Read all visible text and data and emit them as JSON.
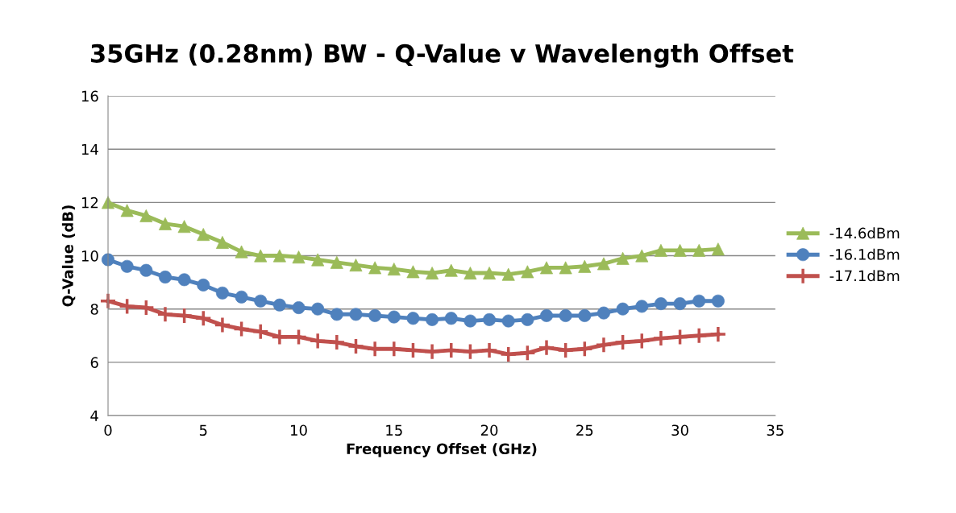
{
  "chart_data": {
    "type": "line",
    "title": "35GHz (0.28nm) BW - Q-Value v Wavelength Offset",
    "xlabel": "Frequency Offset (GHz)",
    "ylabel": "Q-Value (dB)",
    "x": [
      0,
      1,
      2,
      3,
      4,
      5,
      6,
      7,
      8,
      9,
      10,
      11,
      12,
      13,
      14,
      15,
      16,
      17,
      18,
      19,
      20,
      21,
      22,
      23,
      24,
      25,
      26,
      27,
      28,
      29,
      30,
      31,
      32
    ],
    "series": [
      {
        "name": "-14.6dBm",
        "color": "#9bbb59",
        "marker": "triangle",
        "values": [
          12.0,
          11.7,
          11.5,
          11.2,
          11.1,
          10.8,
          10.5,
          10.15,
          10.0,
          10.0,
          9.95,
          9.85,
          9.75,
          9.65,
          9.55,
          9.5,
          9.4,
          9.35,
          9.45,
          9.35,
          9.35,
          9.3,
          9.4,
          9.55,
          9.55,
          9.6,
          9.7,
          9.9,
          10.0,
          10.2,
          10.2,
          10.2,
          10.25
        ]
      },
      {
        "name": "-16.1dBm",
        "color": "#4f81bd",
        "marker": "circle",
        "values": [
          9.85,
          9.6,
          9.45,
          9.2,
          9.1,
          8.9,
          8.6,
          8.45,
          8.3,
          8.15,
          8.05,
          8.0,
          7.8,
          7.8,
          7.75,
          7.7,
          7.65,
          7.6,
          7.65,
          7.55,
          7.6,
          7.55,
          7.6,
          7.75,
          7.75,
          7.75,
          7.85,
          8.0,
          8.1,
          8.2,
          8.2,
          8.3,
          8.3
        ]
      },
      {
        "name": "-17.1dBm",
        "color": "#c0504d",
        "marker": "cross",
        "values": [
          8.3,
          8.1,
          8.05,
          7.8,
          7.75,
          7.65,
          7.4,
          7.25,
          7.15,
          6.95,
          6.95,
          6.8,
          6.75,
          6.6,
          6.5,
          6.5,
          6.45,
          6.4,
          6.45,
          6.4,
          6.45,
          6.3,
          6.35,
          6.55,
          6.45,
          6.5,
          6.65,
          6.75,
          6.8,
          6.9,
          6.95,
          7.0,
          7.05
        ]
      }
    ],
    "xlim": [
      0,
      35
    ],
    "xticks": [
      0,
      5,
      10,
      15,
      20,
      25,
      30,
      35
    ],
    "ylim": [
      4,
      16
    ],
    "yticks": [
      4,
      6,
      8,
      10,
      12,
      14,
      16
    ],
    "grid": "y",
    "legend": "right",
    "line_style": "solid"
  }
}
